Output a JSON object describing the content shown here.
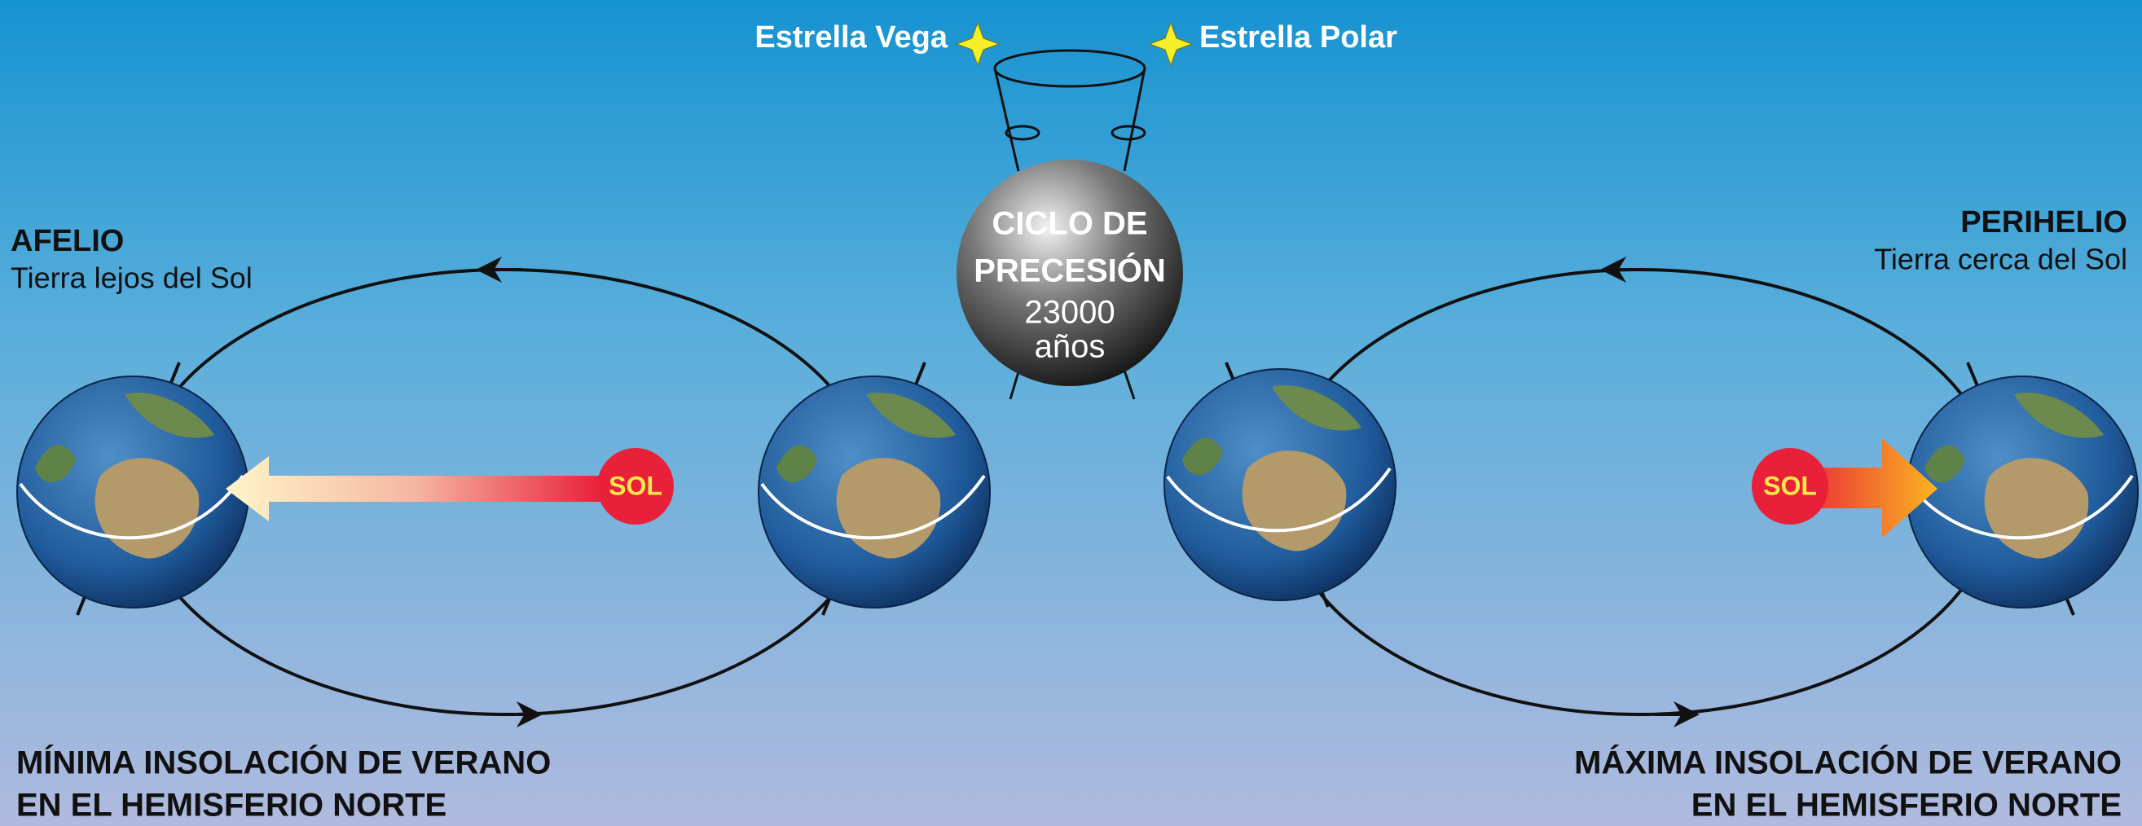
{
  "stars": {
    "vega": "Estrella Vega",
    "polar": "Estrella Polar"
  },
  "center": {
    "line1": "CICLO DE",
    "line2": "PRECESIÓN",
    "years": "23000",
    "unit": "años"
  },
  "left": {
    "title": "AFELIO",
    "subtitle": "Tierra lejos del Sol",
    "sun": "SOL",
    "caption": [
      "MÍNIMA INSOLACIÓN DE VERANO",
      "EN EL HEMISFERIO NORTE"
    ]
  },
  "right": {
    "title": "PERIHELIO",
    "subtitle": "Tierra cerca del Sol",
    "sun": "SOL",
    "caption": [
      "MÁXIMA INSOLACIÓN DE VERANO",
      "EN EL HEMISFERIO NORTE"
    ]
  }
}
